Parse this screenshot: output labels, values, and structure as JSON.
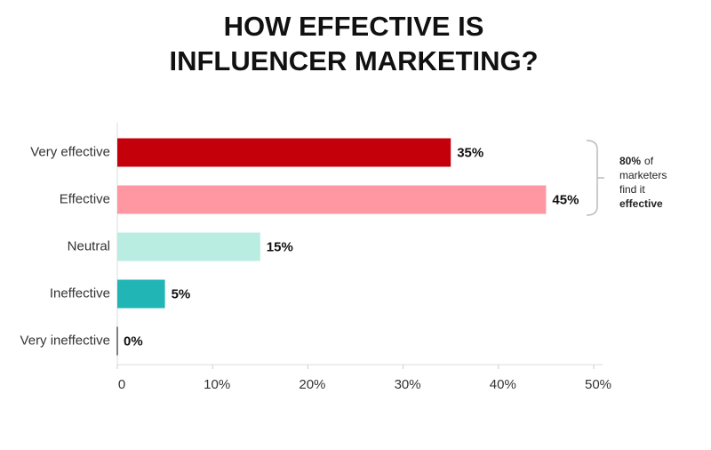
{
  "chart_data": {
    "type": "hbar",
    "title": [
      "HOW EFFECTIVE IS",
      "INFLUENCER MARKETING?"
    ],
    "categories": [
      "Very effective",
      "Effective",
      "Neutral",
      "Ineffective",
      "Very ineffective"
    ],
    "values": [
      35,
      45,
      15,
      5,
      0
    ],
    "value_labels": [
      "35%",
      "45%",
      "15%",
      "5%",
      "0%"
    ],
    "colors": [
      "#c4000b",
      "#fe97a1",
      "#b9ede2",
      "#22b5b5",
      "#555555"
    ],
    "xlim": [
      0,
      50
    ],
    "xticks": [
      0,
      {
        "value": 10,
        "label": "10%"
      },
      {
        "value": 20,
        "label": "20%"
      },
      {
        "value": 30,
        "label": "30%"
      },
      {
        "value": 40,
        "label": "40%"
      },
      {
        "value": 50,
        "label": "50%"
      }
    ],
    "annotation": [
      [
        {
          "text": "80%",
          "bold": true
        },
        {
          "text": "of",
          "bold": false
        }
      ],
      [
        {
          "text": "marketers",
          "bold": false
        }
      ],
      [
        {
          "text": "find it",
          "bold": false
        }
      ],
      [
        {
          "text": "effective",
          "bold": true
        }
      ]
    ]
  }
}
